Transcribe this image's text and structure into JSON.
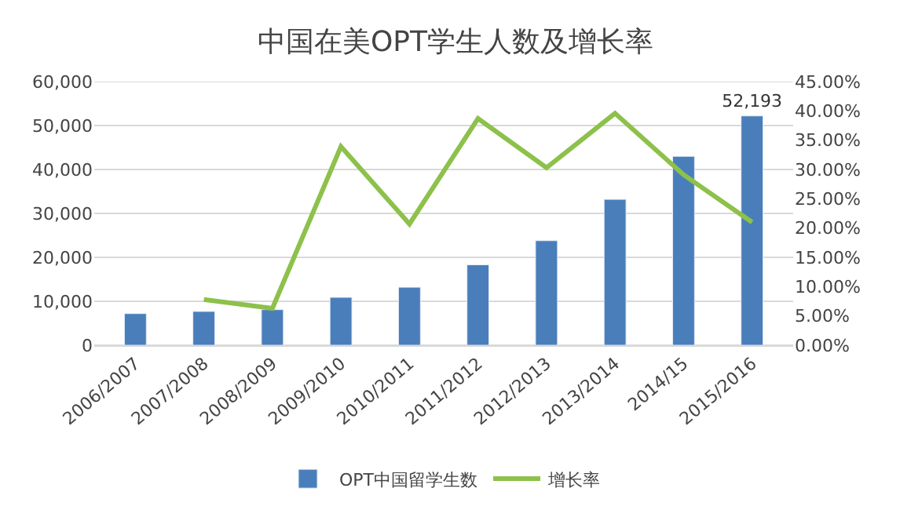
{
  "chart_data": {
    "type": "bar",
    "title": "中国在美OPT学生人数及增长率",
    "categories": [
      "2006/2007",
      "2007/2008",
      "2008/2009",
      "2009/2010",
      "2010/2011",
      "2011/2012",
      "2012/2013",
      "2013/2014",
      "2014/15",
      "2015/2016"
    ],
    "series": [
      {
        "name": "OPT中国留学生数",
        "color": "#4a7ebb",
        "values": [
          7200,
          7700,
          8100,
          10900,
          13200,
          18300,
          23800,
          33200,
          43000,
          52193
        ],
        "value_labels": [
          null,
          null,
          null,
          null,
          null,
          null,
          null,
          null,
          null,
          "52,193"
        ]
      },
      {
        "name": "增长率",
        "type": "line",
        "axis": "y2",
        "color": "#8dc14b",
        "values": [
          null,
          7.8,
          6.3,
          33.9,
          20.7,
          38.7,
          30.3,
          39.6,
          29.1,
          21.0
        ]
      }
    ],
    "ylim": [
      0,
      60000
    ],
    "yticks": [
      {
        "value": 0,
        "label": "0"
      },
      {
        "value": 10000,
        "label": "10,000"
      },
      {
        "value": 20000,
        "label": "20,000"
      },
      {
        "value": 30000,
        "label": "30,000"
      },
      {
        "value": 40000,
        "label": "40,000"
      },
      {
        "value": 50000,
        "label": "50,000"
      },
      {
        "value": 60000,
        "label": "60,000"
      }
    ],
    "y2lim": [
      0,
      45
    ],
    "y2ticks": [
      {
        "value": 0,
        "label": "0.00%"
      },
      {
        "value": 5,
        "label": "5.00%"
      },
      {
        "value": 10,
        "label": "10.00%"
      },
      {
        "value": 15,
        "label": "15.00%"
      },
      {
        "value": 20,
        "label": "20.00%"
      },
      {
        "value": 25,
        "label": "25.00%"
      },
      {
        "value": 30,
        "label": "30.00%"
      },
      {
        "value": 35,
        "label": "35.00%"
      },
      {
        "value": 40,
        "label": "40.00%"
      },
      {
        "value": 45,
        "label": "45.00%"
      }
    ],
    "grid": "y",
    "legend": "bottom",
    "marker": "none",
    "line_style": "solid"
  }
}
